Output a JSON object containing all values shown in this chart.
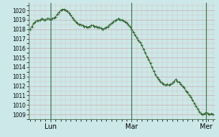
{
  "background_color": "#cce8e8",
  "grid_color_major_x": "#cc9999",
  "grid_color_major_y": "#cc9999",
  "grid_color_minor": "#ddbbbb",
  "line_color": "#336633",
  "marker_color": "#336633",
  "ylim_min": 1008.5,
  "ylim_max": 1020.8,
  "yticks": [
    1009,
    1010,
    1011,
    1012,
    1013,
    1014,
    1015,
    1016,
    1017,
    1018,
    1019,
    1020
  ],
  "vline_color": "#336644",
  "values": [
    1018.0,
    1018.3,
    1018.6,
    1018.8,
    1018.9,
    1018.9,
    1019.0,
    1019.1,
    1019.0,
    1019.0,
    1019.1,
    1019.1,
    1019.0,
    1019.1,
    1019.2,
    1019.3,
    1019.6,
    1019.8,
    1020.0,
    1020.1,
    1020.1,
    1020.0,
    1019.9,
    1019.7,
    1019.5,
    1019.2,
    1019.0,
    1018.8,
    1018.6,
    1018.5,
    1018.5,
    1018.4,
    1018.3,
    1018.3,
    1018.2,
    1018.3,
    1018.4,
    1018.4,
    1018.3,
    1018.3,
    1018.2,
    1018.2,
    1018.1,
    1018.0,
    1018.1,
    1018.2,
    1018.3,
    1018.5,
    1018.6,
    1018.8,
    1018.9,
    1019.0,
    1019.1,
    1019.0,
    1019.0,
    1018.9,
    1018.8,
    1018.7,
    1018.5,
    1018.3,
    1018.0,
    1017.7,
    1017.4,
    1017.1,
    1016.8,
    1016.6,
    1016.3,
    1015.9,
    1015.5,
    1015.1,
    1014.8,
    1014.4,
    1014.0,
    1013.6,
    1013.2,
    1012.9,
    1012.7,
    1012.5,
    1012.3,
    1012.2,
    1012.1,
    1012.2,
    1012.1,
    1012.2,
    1012.3,
    1012.5,
    1012.7,
    1012.5,
    1012.4,
    1012.2,
    1012.0,
    1011.8,
    1011.5,
    1011.3,
    1011.0,
    1010.8,
    1010.5,
    1010.2,
    1009.9,
    1009.6,
    1009.3,
    1009.1,
    1009.0,
    1009.1,
    1009.2,
    1009.1,
    1009.0,
    1009.1,
    1009.0
  ],
  "n_points": 109,
  "lun_x": 12,
  "mar_x": 60,
  "mer_x": 104,
  "vlines_x": [
    12,
    60,
    104
  ],
  "xtick_positions": [
    12,
    60,
    104
  ],
  "xtick_labels": [
    "Lun",
    "Mar",
    "Mer"
  ]
}
